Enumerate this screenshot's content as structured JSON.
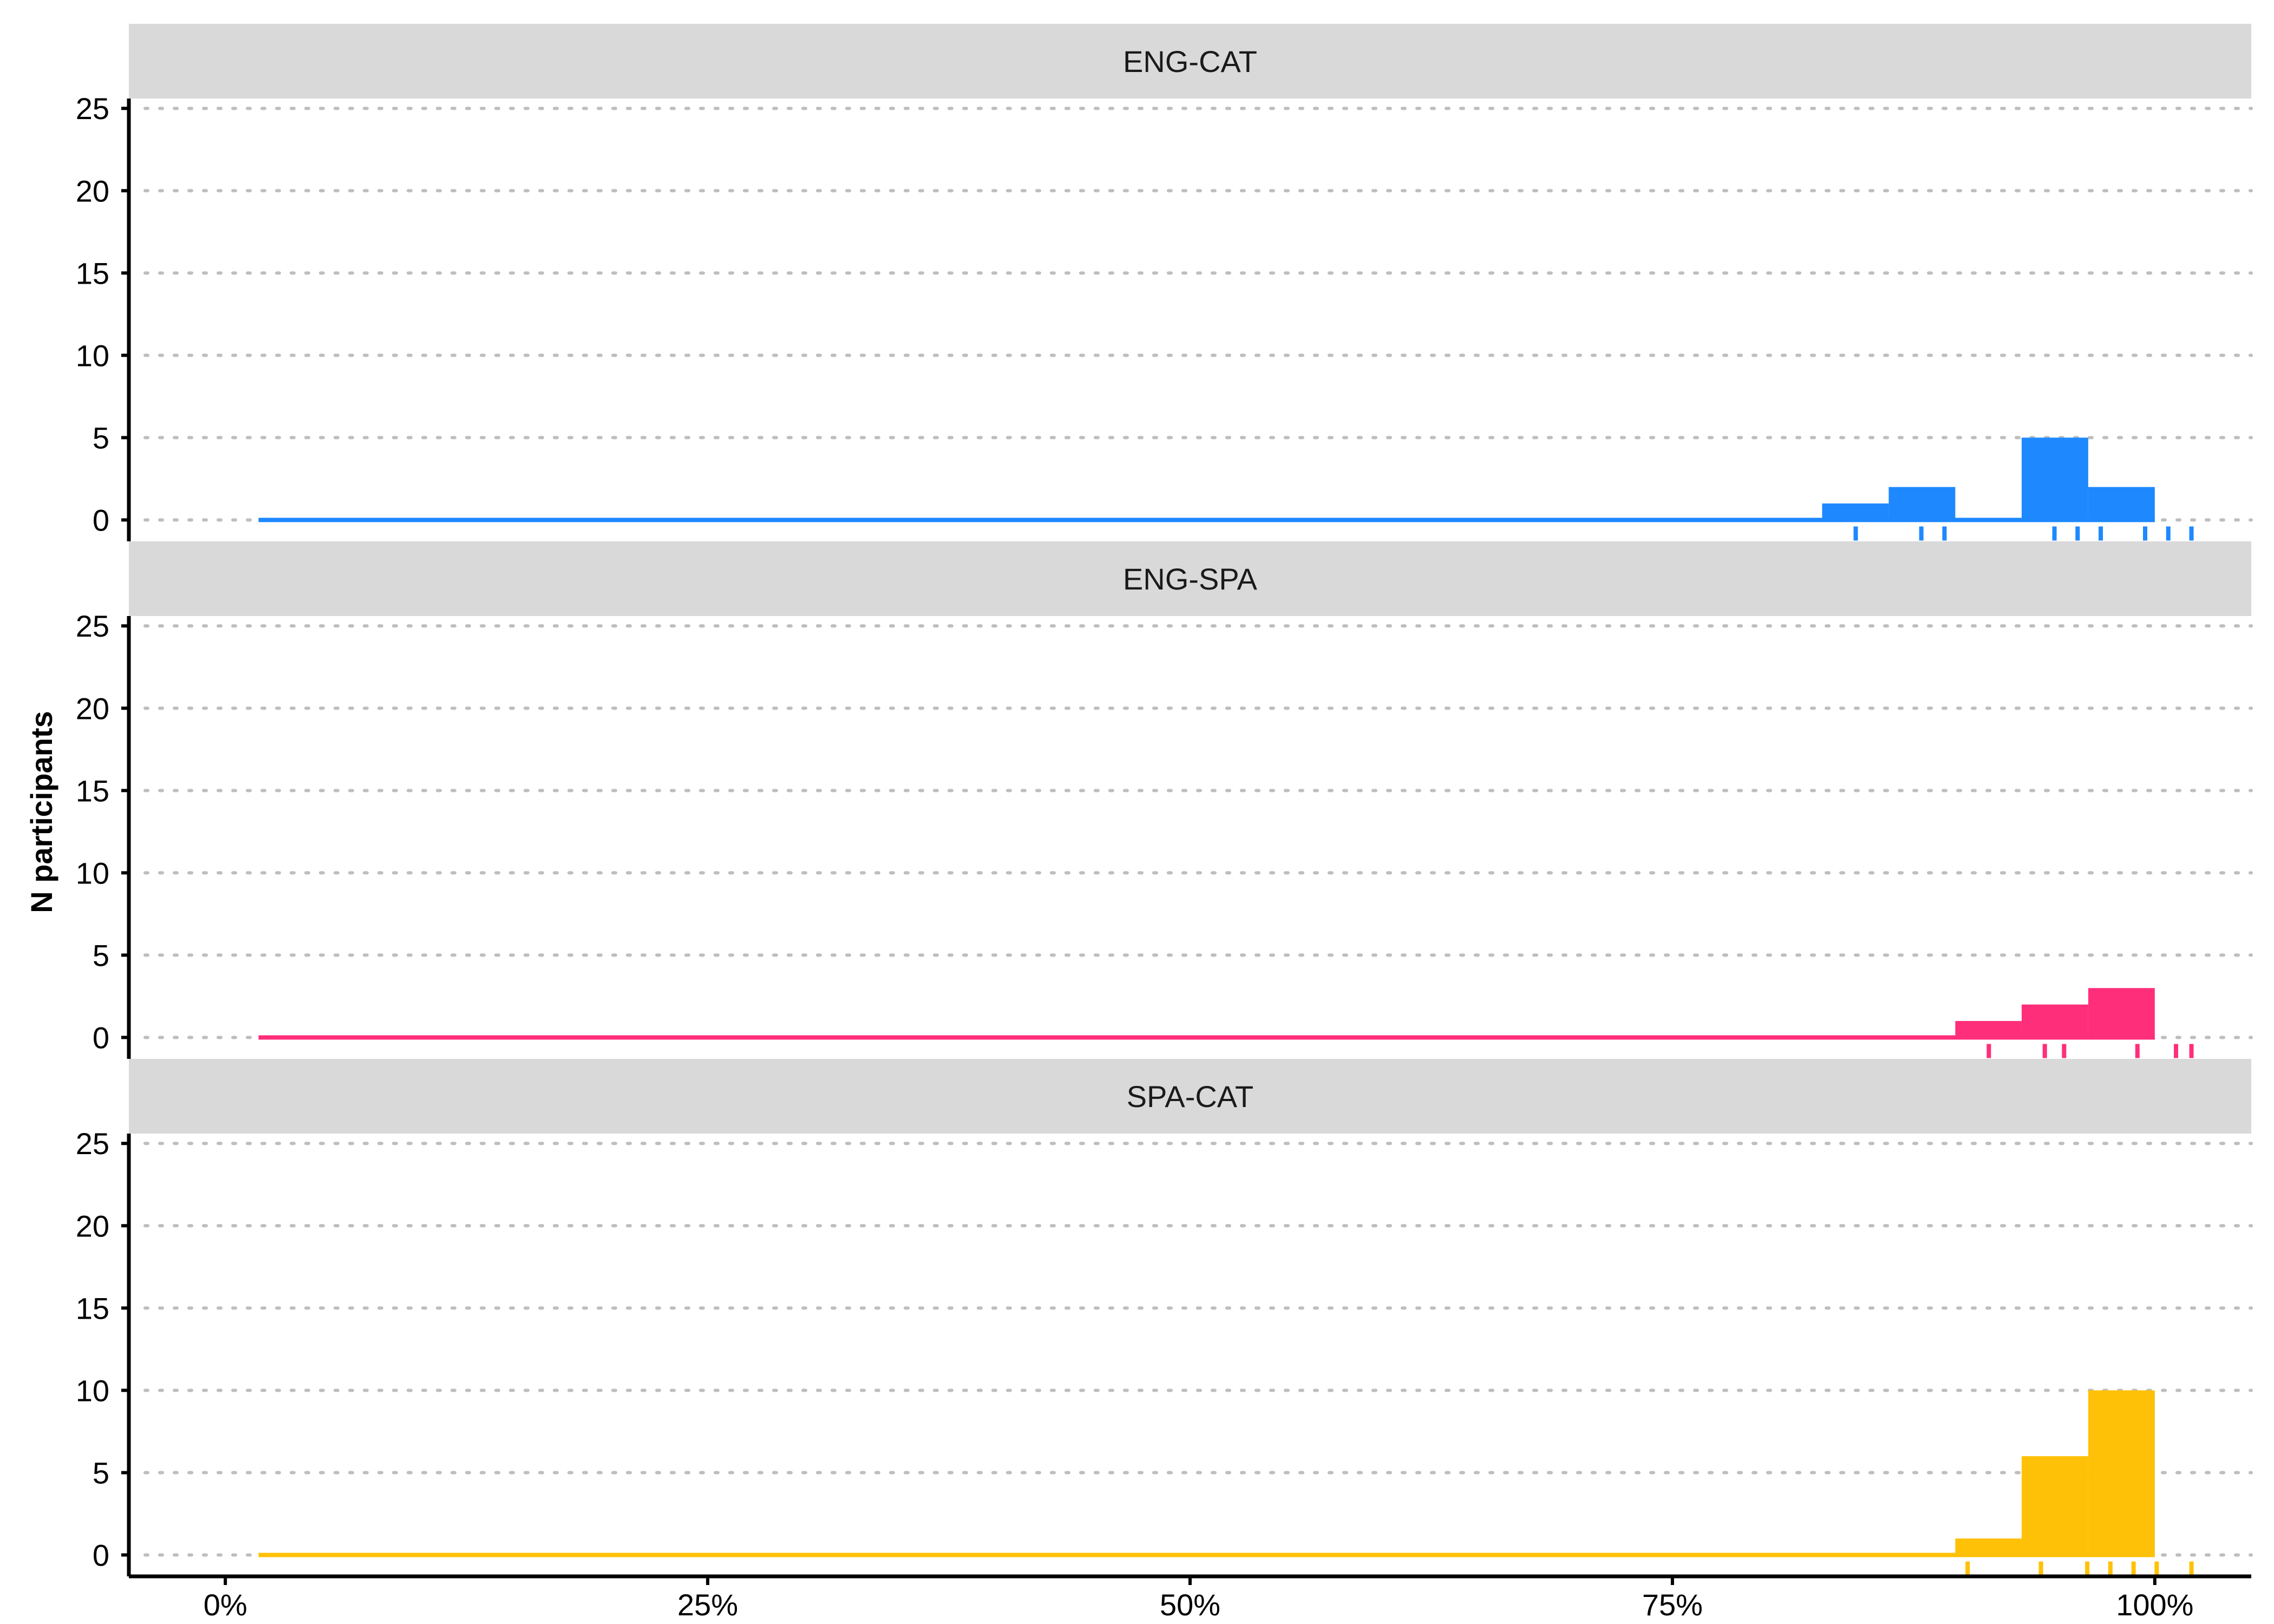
{
  "chart_data": {
    "type": "histogram",
    "ylabel": "N participants",
    "xlim": [
      -0.05,
      1.05
    ],
    "ylim": [
      -1.3,
      25.6
    ],
    "x_ticks": [
      {
        "value": 0.0,
        "label": "0%"
      },
      {
        "value": 0.25,
        "label": "25%"
      },
      {
        "value": 0.5,
        "label": "50%"
      },
      {
        "value": 0.75,
        "label": "75%"
      },
      {
        "value": 1.0,
        "label": "100%"
      }
    ],
    "y_ticks": [
      0,
      5,
      10,
      15,
      20,
      25
    ],
    "grid": "horizontal dotted",
    "bin_width": 0.0345,
    "panels": [
      {
        "name": "ENG-CAT",
        "color": "#1E88FF",
        "baseline_x": [
          0.0172,
          1.0
        ],
        "bins": [
          {
            "x0": 0.8276,
            "x1": 0.8621,
            "count": 1
          },
          {
            "x0": 0.8621,
            "x1": 0.8966,
            "count": 2
          },
          {
            "x0": 0.8966,
            "x1": 0.931,
            "count": 0
          },
          {
            "x0": 0.931,
            "x1": 0.9655,
            "count": 5
          },
          {
            "x0": 0.9655,
            "x1": 1.0,
            "count": 2
          }
        ],
        "rug": [
          0.845,
          0.879,
          0.891,
          0.948,
          0.96,
          0.972,
          0.995,
          1.007,
          1.019
        ]
      },
      {
        "name": "ENG-SPA",
        "color": "#FF2E7A",
        "baseline_x": [
          0.0172,
          1.0
        ],
        "bins": [
          {
            "x0": 0.8966,
            "x1": 0.931,
            "count": 1
          },
          {
            "x0": 0.931,
            "x1": 0.9655,
            "count": 2
          },
          {
            "x0": 0.9655,
            "x1": 1.0,
            "count": 3
          }
        ],
        "rug": [
          0.914,
          0.943,
          0.953,
          0.991,
          1.011,
          1.019
        ]
      },
      {
        "name": "SPA-CAT",
        "color": "#FFC107",
        "baseline_x": [
          0.0172,
          1.0
        ],
        "bins": [
          {
            "x0": 0.8966,
            "x1": 0.931,
            "count": 1
          },
          {
            "x0": 0.931,
            "x1": 0.9655,
            "count": 6
          },
          {
            "x0": 0.9655,
            "x1": 1.0,
            "count": 10
          }
        ],
        "rug": [
          0.903,
          0.941,
          0.965,
          0.977,
          0.989,
          1.001,
          1.019
        ]
      }
    ]
  }
}
